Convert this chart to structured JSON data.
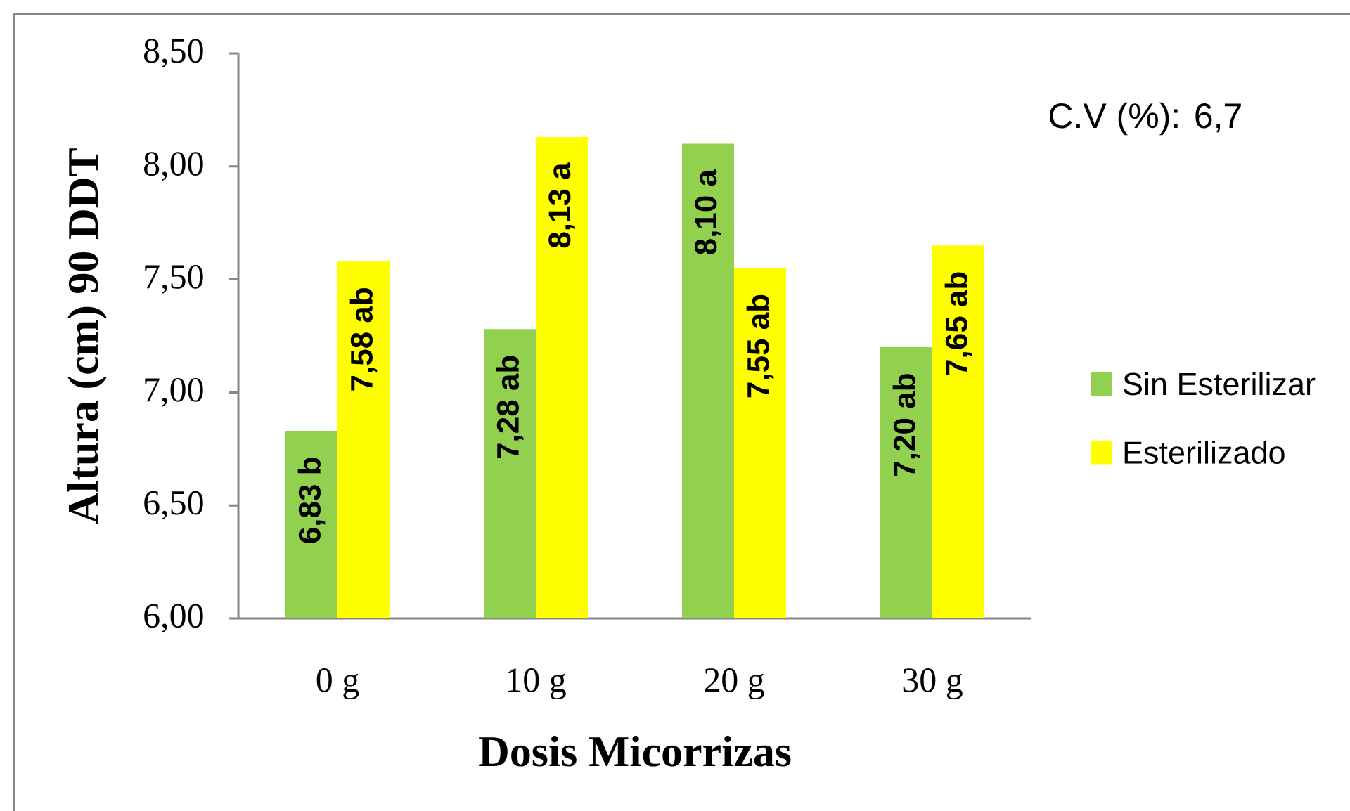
{
  "chart_data": {
    "type": "bar",
    "xlabel": "Dosis Micorrizas",
    "ylabel": "Altura (cm) 90 DDT",
    "categories": [
      "0 g",
      "10 g",
      "20 g",
      "30 g"
    ],
    "series": [
      {
        "name": "Sin Esterilizar",
        "color": "#92d050",
        "values": [
          6.83,
          7.28,
          8.1,
          7.2
        ],
        "value_labels": [
          "6,83 b",
          "7,28 ab",
          "8,10 a",
          "7,20 ab"
        ]
      },
      {
        "name": "Esterilizado",
        "color": "#ffff00",
        "values": [
          7.58,
          8.13,
          7.55,
          7.65
        ],
        "value_labels": [
          "7,58 ab",
          "8,13 a",
          "7,55 ab",
          "7,65 ab"
        ]
      }
    ],
    "ylim": [
      6,
      8.5
    ],
    "yticks": [
      {
        "value": 6,
        "label": "6,00"
      },
      {
        "value": 6.5,
        "label": "6,50"
      },
      {
        "value": 7,
        "label": "7,00"
      },
      {
        "value": 7.5,
        "label": "7,50"
      },
      {
        "value": 8,
        "label": "8,00"
      },
      {
        "value": 8.5,
        "label": "8,50"
      }
    ],
    "legend": "right",
    "annotations": [
      "C.V (%): 6,7"
    ]
  }
}
